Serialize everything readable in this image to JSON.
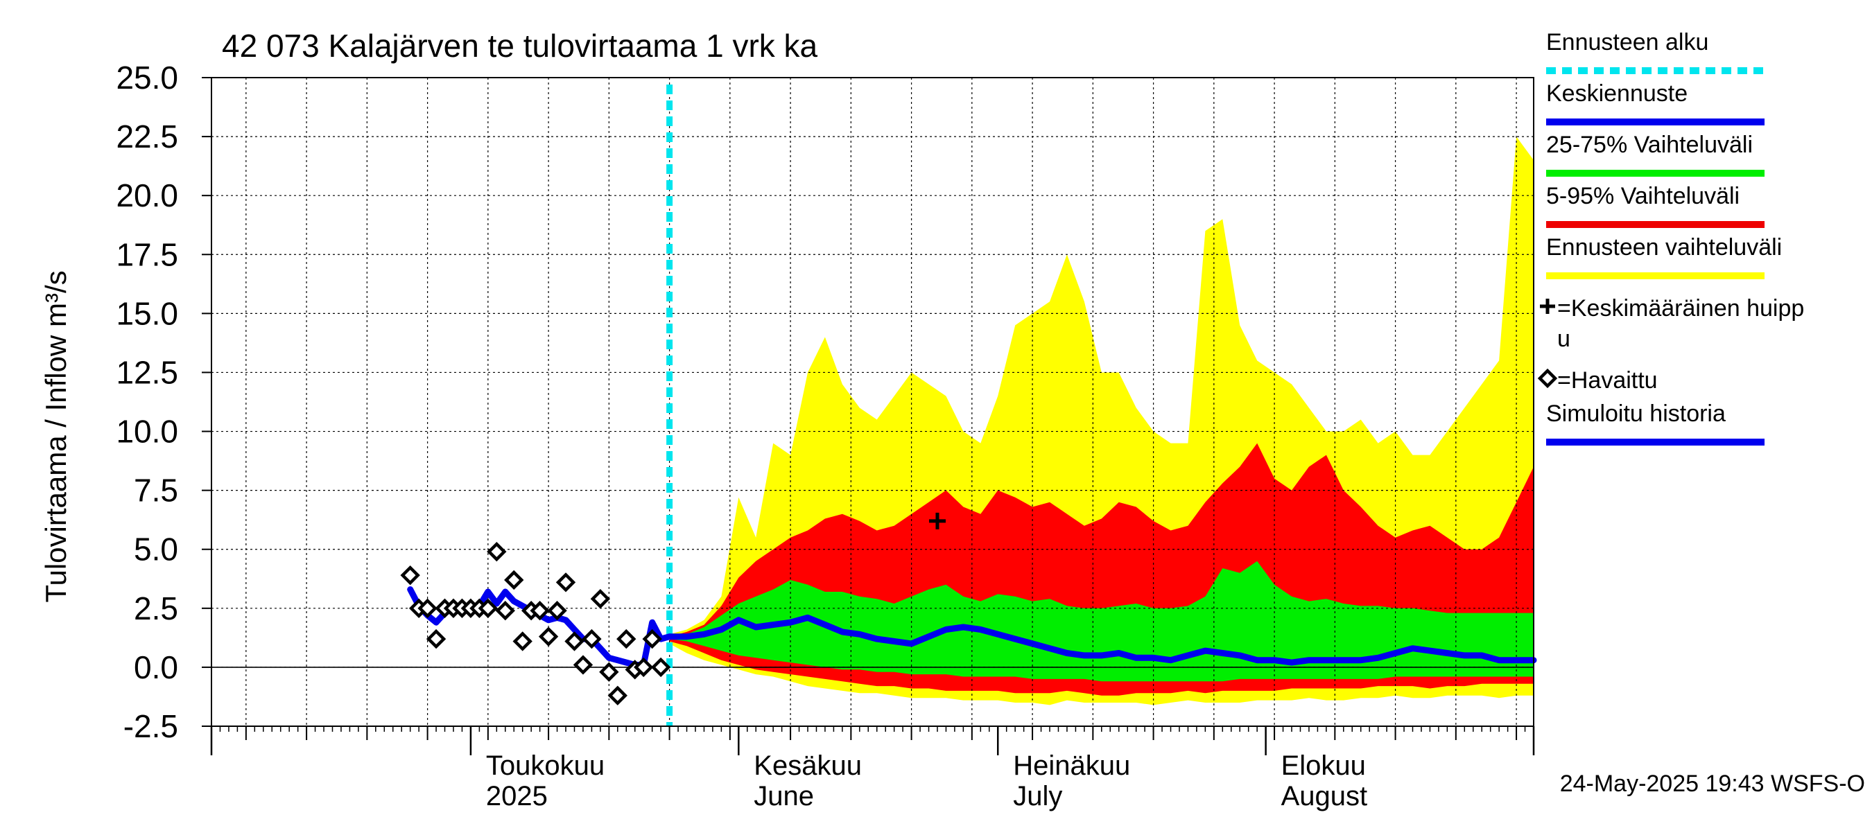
{
  "chart_data": {
    "type": "area",
    "title": "42 073 Kalajärven te tulovirtaama 1 vrk ka",
    "ylabel": "Tulovirtaama / Inflow    m³/s",
    "ylim": [
      -2.5,
      25.0
    ],
    "y_ticks": [
      "25.0",
      "22.5",
      "20.0",
      "17.5",
      "15.0",
      "12.5",
      "10.0",
      "7.5",
      "5.0",
      "2.5",
      "0.0",
      "-2.5"
    ],
    "y_tick_values": [
      25.0,
      22.5,
      20.0,
      17.5,
      15.0,
      12.5,
      10.0,
      7.5,
      5.0,
      2.5,
      0.0,
      -2.5
    ],
    "x_unit": "days since 2025-04-01",
    "xlim": [
      0,
      153
    ],
    "month_boundaries": [
      0,
      30,
      61,
      91,
      122,
      153
    ],
    "week_ticks": [
      4,
      11,
      18,
      25,
      32,
      39,
      46,
      53,
      60,
      67,
      74,
      81,
      88,
      95,
      102,
      109,
      116,
      123,
      130,
      137,
      144,
      151
    ],
    "x_labels": [
      {
        "day": 30,
        "line1": "Toukokuu",
        "line2": "2025"
      },
      {
        "day": 61,
        "line1": "Kesäkuu",
        "line2": "June"
      },
      {
        "day": 91,
        "line1": "Heinäkuu",
        "line2": "July"
      },
      {
        "day": 122,
        "line1": "Elokuu",
        "line2": "August"
      }
    ],
    "forecast_start_day": 53,
    "grid": true,
    "legend_position": "right",
    "legend": [
      {
        "key": "forecast_start",
        "label": "Ennusteen alku",
        "color": "#00e5ee",
        "style": "dotted"
      },
      {
        "key": "median",
        "label": "Keskiennuste",
        "color": "#0000ee",
        "style": "line"
      },
      {
        "key": "band_25_75",
        "label": "25-75% Vaihteluväli",
        "color": "#00ee00",
        "style": "line"
      },
      {
        "key": "band_5_95",
        "label": "5-95% Vaihteluväli",
        "color": "#ee0000",
        "style": "line"
      },
      {
        "key": "band_total",
        "label": "Ennusteen vaihteluväli",
        "color": "#ffff00",
        "style": "line"
      },
      {
        "key": "mean_peak",
        "label_lines": [
          "=Keskimääräinen huipp",
          "u"
        ],
        "marker": "plus"
      },
      {
        "key": "observed",
        "label": "=Havaittu",
        "marker": "diamond"
      },
      {
        "key": "simulated",
        "label": "Simuloitu historia",
        "color": "#0000ee",
        "style": "line"
      }
    ],
    "colors": {
      "yellow": "#ffff00",
      "red": "#ff0000",
      "green": "#00ee00",
      "blue": "#0000ee",
      "cyan": "#00e5ee"
    },
    "series": {
      "simulated_history": {
        "x": [
          23,
          24,
          25,
          26,
          27,
          28,
          29,
          30,
          31,
          32,
          33,
          34,
          35,
          36,
          37,
          38,
          39,
          40,
          41,
          42,
          43,
          44,
          45,
          46,
          47,
          48,
          49,
          50,
          51,
          52,
          53
        ],
        "y": [
          3.3,
          2.6,
          2.2,
          1.9,
          2.3,
          2.5,
          2.6,
          2.5,
          2.6,
          3.2,
          2.7,
          3.2,
          2.8,
          2.6,
          2.4,
          2.2,
          2.0,
          2.1,
          2.0,
          1.6,
          1.2,
          1.2,
          0.8,
          0.4,
          0.3,
          0.2,
          0.1,
          0.1,
          1.9,
          1.2,
          1.3
        ]
      },
      "observed": {
        "x": [
          23,
          24,
          25,
          26,
          27,
          28,
          29,
          30,
          31,
          32,
          33,
          34,
          35,
          36,
          37,
          38,
          39,
          40,
          41,
          42,
          43,
          44,
          45,
          46,
          47,
          48,
          49,
          50,
          51,
          52
        ],
        "y": [
          3.9,
          2.5,
          2.5,
          1.2,
          2.5,
          2.5,
          2.5,
          2.5,
          2.5,
          2.5,
          4.9,
          2.4,
          3.7,
          1.1,
          2.4,
          2.4,
          1.3,
          2.4,
          3.6,
          1.1,
          0.1,
          1.2,
          2.9,
          -0.2,
          -1.2,
          1.2,
          -0.1,
          0.0,
          1.2,
          0.0
        ]
      },
      "forecast_days": [
        53,
        55,
        57,
        59,
        61,
        63,
        65,
        67,
        69,
        71,
        73,
        75,
        77,
        79,
        81,
        83,
        85,
        87,
        89,
        91,
        93,
        95,
        97,
        99,
        101,
        103,
        105,
        107,
        109,
        111,
        113,
        115,
        117,
        119,
        121,
        123,
        125,
        127,
        129,
        131,
        133,
        135,
        137,
        139,
        141,
        143,
        145,
        147,
        149,
        151,
        153
      ],
      "band_total_min": [
        1.0,
        0.6,
        0.3,
        0.1,
        -0.1,
        -0.3,
        -0.4,
        -0.6,
        -0.8,
        -0.9,
        -1.0,
        -1.1,
        -1.1,
        -1.2,
        -1.3,
        -1.3,
        -1.3,
        -1.4,
        -1.4,
        -1.4,
        -1.5,
        -1.5,
        -1.6,
        -1.4,
        -1.5,
        -1.5,
        -1.5,
        -1.5,
        -1.6,
        -1.5,
        -1.4,
        -1.5,
        -1.5,
        -1.5,
        -1.4,
        -1.4,
        -1.4,
        -1.3,
        -1.4,
        -1.4,
        -1.3,
        -1.3,
        -1.2,
        -1.3,
        -1.3,
        -1.2,
        -1.2,
        -1.2,
        -1.3,
        -1.2,
        -1.2
      ],
      "band_total_max": [
        1.4,
        1.6,
        2.0,
        3.0,
        7.2,
        5.5,
        9.5,
        9.0,
        12.5,
        14.0,
        12.0,
        11.0,
        10.5,
        11.5,
        12.5,
        12.0,
        11.5,
        10.0,
        9.5,
        11.5,
        14.5,
        15.0,
        15.5,
        17.5,
        15.5,
        12.5,
        12.5,
        11.0,
        10.0,
        9.5,
        9.5,
        18.5,
        19.0,
        14.5,
        13.0,
        12.5,
        12.0,
        11.0,
        10.0,
        10.0,
        10.5,
        9.5,
        10.0,
        9.0,
        9.0,
        10.0,
        11.0,
        12.0,
        13.0,
        22.5,
        21.5
      ],
      "band_5_95_min": [
        1.1,
        0.9,
        0.6,
        0.3,
        0.1,
        -0.1,
        -0.2,
        -0.3,
        -0.4,
        -0.5,
        -0.6,
        -0.7,
        -0.8,
        -0.8,
        -0.9,
        -0.9,
        -1.0,
        -1.0,
        -1.0,
        -1.0,
        -1.1,
        -1.1,
        -1.1,
        -1.0,
        -1.1,
        -1.2,
        -1.2,
        -1.1,
        -1.1,
        -1.1,
        -1.0,
        -1.1,
        -1.0,
        -1.0,
        -1.0,
        -1.0,
        -0.9,
        -0.9,
        -0.9,
        -0.9,
        -0.9,
        -0.8,
        -0.8,
        -0.8,
        -0.9,
        -0.8,
        -0.8,
        -0.7,
        -0.7,
        -0.7,
        -0.7
      ],
      "band_5_95_max": [
        1.3,
        1.5,
        1.8,
        2.6,
        3.8,
        4.5,
        5.0,
        5.5,
        5.8,
        6.3,
        6.5,
        6.2,
        5.8,
        6.0,
        6.5,
        7.0,
        7.5,
        6.8,
        6.5,
        7.5,
        7.2,
        6.8,
        7.0,
        6.5,
        6.0,
        6.3,
        7.0,
        6.8,
        6.2,
        5.8,
        6.0,
        7.0,
        7.8,
        8.5,
        9.5,
        8.0,
        7.5,
        8.5,
        9.0,
        7.5,
        6.8,
        6.0,
        5.5,
        5.8,
        6.0,
        5.5,
        5.0,
        5.0,
        5.5,
        7.0,
        8.5
      ],
      "band_25_75_min": [
        1.2,
        1.1,
        0.9,
        0.7,
        0.5,
        0.4,
        0.3,
        0.2,
        0.1,
        0.0,
        -0.1,
        -0.1,
        -0.2,
        -0.2,
        -0.3,
        -0.3,
        -0.3,
        -0.4,
        -0.4,
        -0.4,
        -0.4,
        -0.5,
        -0.5,
        -0.5,
        -0.5,
        -0.6,
        -0.6,
        -0.6,
        -0.6,
        -0.6,
        -0.6,
        -0.6,
        -0.6,
        -0.5,
        -0.5,
        -0.5,
        -0.5,
        -0.5,
        -0.5,
        -0.5,
        -0.5,
        -0.5,
        -0.4,
        -0.4,
        -0.4,
        -0.4,
        -0.4,
        -0.4,
        -0.4,
        -0.4,
        -0.4
      ],
      "band_25_75_max": [
        1.3,
        1.4,
        1.7,
        2.2,
        2.7,
        3.0,
        3.3,
        3.7,
        3.5,
        3.2,
        3.2,
        3.0,
        2.9,
        2.7,
        3.0,
        3.3,
        3.5,
        3.0,
        2.8,
        3.1,
        3.0,
        2.8,
        2.9,
        2.6,
        2.5,
        2.5,
        2.6,
        2.7,
        2.5,
        2.5,
        2.6,
        3.0,
        4.2,
        4.0,
        4.5,
        3.5,
        3.0,
        2.8,
        2.9,
        2.7,
        2.6,
        2.6,
        2.5,
        2.5,
        2.4,
        2.3,
        2.3,
        2.3,
        2.3,
        2.3,
        2.3
      ],
      "median": [
        1.3,
        1.3,
        1.4,
        1.6,
        2.0,
        1.7,
        1.8,
        1.9,
        2.1,
        1.8,
        1.5,
        1.4,
        1.2,
        1.1,
        1.0,
        1.3,
        1.6,
        1.7,
        1.6,
        1.4,
        1.2,
        1.0,
        0.8,
        0.6,
        0.5,
        0.5,
        0.6,
        0.4,
        0.4,
        0.3,
        0.5,
        0.7,
        0.6,
        0.5,
        0.3,
        0.3,
        0.2,
        0.3,
        0.3,
        0.3,
        0.3,
        0.4,
        0.6,
        0.8,
        0.7,
        0.6,
        0.5,
        0.5,
        0.3,
        0.3,
        0.3
      ]
    },
    "mean_peak": {
      "x": 84,
      "y": 6.2
    }
  },
  "timestamp": "24-May-2025 19:43 WSFS-O"
}
